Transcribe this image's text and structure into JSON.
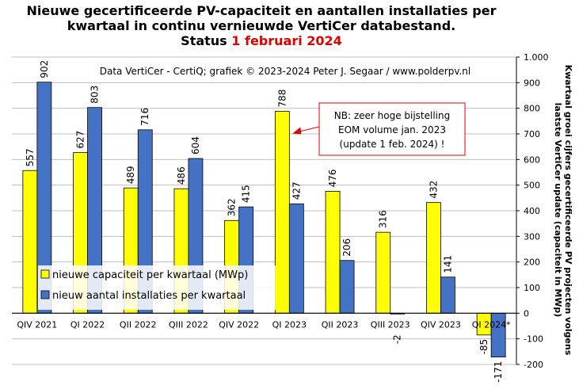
{
  "title": {
    "line1": "Nieuwe gecertificeerde PV-capaciteit en aantallen installaties per",
    "line2": "kwartaal in continu vernieuwde VertiCer databestand.",
    "status_prefix": "Status",
    "status_date": "1 februari 2024"
  },
  "source_note": "Data VertiCer - CertiQ; grafiek © 2023-2024 Peter J. Segaar / www.polderpv.nl",
  "annotation": {
    "line1": "NB: zeer hoge bijstelling",
    "line2": "EOM volume jan. 2023",
    "line3": "(update 1 feb. 2024) !"
  },
  "legend": {
    "capacity": "nieuwe capaciteit per kwartaal (MWp)",
    "installations": "nieuw aantal installaties per kwartaal"
  },
  "right_axis_title": {
    "line1": "Kwartaal groei cijfers gecertificeerde PV projecten volgens",
    "line2": "laatste VertiCer update (capaciteit in MWp)"
  },
  "colors": {
    "capacity": "#ffff00",
    "installations": "#4472c4",
    "annotation_border": "#e00000",
    "grid": "#bfbfbf"
  },
  "chart_data": {
    "type": "bar",
    "categories": [
      "QIV 2021",
      "QI 2022",
      "QII 2022",
      "QIII 2022",
      "QIV 2022",
      "QI 2023",
      "QII 2023",
      "QIII 2023",
      "QIV 2023",
      "QI 2024*"
    ],
    "series": [
      {
        "name": "nieuwe capaciteit per kwartaal (MWp)",
        "values": [
          557,
          627,
          489,
          486,
          362,
          788,
          476,
          316,
          432,
          -85
        ],
        "labels": [
          "557",
          "627",
          "489",
          "486",
          "362",
          "788",
          "476",
          "316",
          "432",
          "-85"
        ]
      },
      {
        "name": "nieuw aantal installaties per kwartaal",
        "values": [
          902,
          803,
          716,
          604,
          415,
          427,
          206,
          -2,
          141,
          -171
        ],
        "labels": [
          "902",
          "803",
          "716",
          "604",
          "415",
          "427",
          "206",
          "-2",
          "141",
          "-171"
        ]
      }
    ],
    "ylim": [
      -200,
      1000
    ],
    "yticks": [
      -200,
      -100,
      0,
      100,
      200,
      300,
      400,
      500,
      600,
      700,
      800,
      900,
      1000
    ],
    "ytick_labels": [
      "-200",
      "-100",
      "0",
      "100",
      "200",
      "300",
      "400",
      "500",
      "600",
      "700",
      "800",
      "900",
      "1.000"
    ],
    "y_axis_side": "right",
    "grid": true,
    "legend_position": "bottom-left"
  }
}
